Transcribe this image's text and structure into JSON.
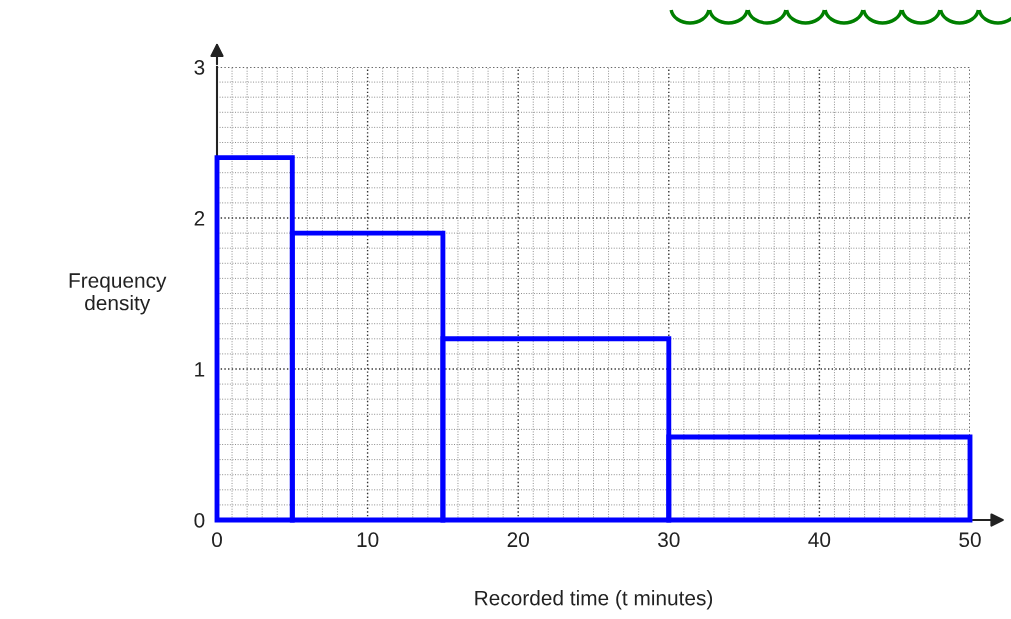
{
  "chart_data": {
    "type": "histogram",
    "xlabel": "Recorded time (t minutes)",
    "ylabel": "Frequency\ndensity",
    "bins": [
      0,
      5,
      15,
      30,
      50
    ],
    "values": [
      2.4,
      1.9,
      1.2,
      0.55
    ],
    "color": "#0000ff",
    "xlim": [
      0,
      50
    ],
    "ylim": [
      0,
      3
    ],
    "xticks": [
      0,
      10,
      20,
      30,
      40,
      50
    ],
    "yticks": [
      0,
      1,
      2,
      3
    ],
    "grid": true
  }
}
